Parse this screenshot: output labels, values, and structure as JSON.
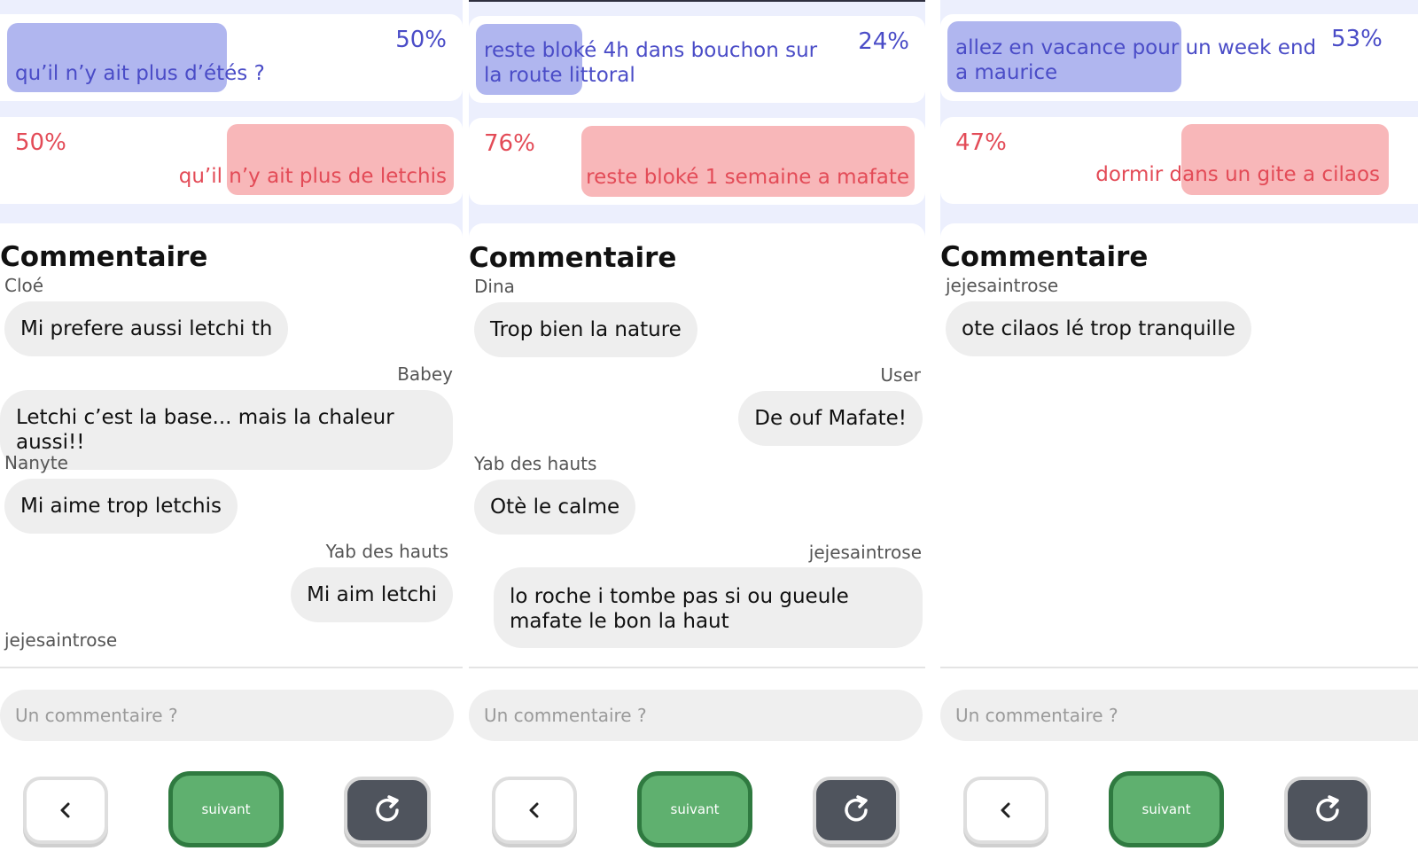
{
  "panels": [
    {
      "option_a": {
        "text": "qu’il n’y ait plus d’étés ?",
        "percent": "50%"
      },
      "option_b": {
        "text": "qu’il n’y ait plus de letchis",
        "percent": "50%"
      },
      "comments_title": "Commentaire",
      "comments": [
        {
          "author": "Cloé",
          "text": "Mi prefere aussi letchi th"
        },
        {
          "author": "Babey",
          "text": "Letchi c’est la base... mais la chaleur aussi!!"
        },
        {
          "author": "Nanyte",
          "text": "Mi aime trop letchis"
        },
        {
          "author": "Yab des hauts",
          "text": "Mi aim letchi"
        },
        {
          "author": "jejesaintrose",
          "text": ""
        }
      ],
      "input_placeholder": "Un commentaire ?",
      "next_label": "suivant"
    },
    {
      "option_a": {
        "text": "reste bloké 4h dans bouchon sur la route littoral",
        "percent": "24%"
      },
      "option_b": {
        "text": "reste bloké 1 semaine a mafate",
        "percent": "76%"
      },
      "comments_title": "Commentaire",
      "comments": [
        {
          "author": "Dina",
          "text": "Trop bien la nature"
        },
        {
          "author": "User",
          "text": "De ouf Mafate!"
        },
        {
          "author": "Yab des hauts",
          "text": "Otè le calme"
        },
        {
          "author": "jejesaintrose",
          "text": "lo roche i tombe pas si ou gueule mafate le bon la haut"
        }
      ],
      "input_placeholder": "Un commentaire ?",
      "next_label": "suivant"
    },
    {
      "option_a": {
        "text": "allez en vacance pour un week end a maurice",
        "percent": "53%"
      },
      "option_b": {
        "text": "dormir dans un gite a cilaos",
        "percent": "47%"
      },
      "comments_title": "Commentaire",
      "comments": [
        {
          "author": "jejesaintrose",
          "text": "ote cilaos lé trop tranquille"
        }
      ],
      "input_placeholder": "Un commentaire ?",
      "next_label": "suivant"
    }
  ],
  "icons": {
    "back": "chevron-left-icon",
    "reload": "reload-icon"
  },
  "colors": {
    "option_a_text": "#4a4cc7",
    "option_a_highlight": "#b0b6ef",
    "option_b_text": "#e34b57",
    "option_b_highlight": "#f8b7b9",
    "next_button": "#5fb06f",
    "reload_button": "#4f545d"
  }
}
